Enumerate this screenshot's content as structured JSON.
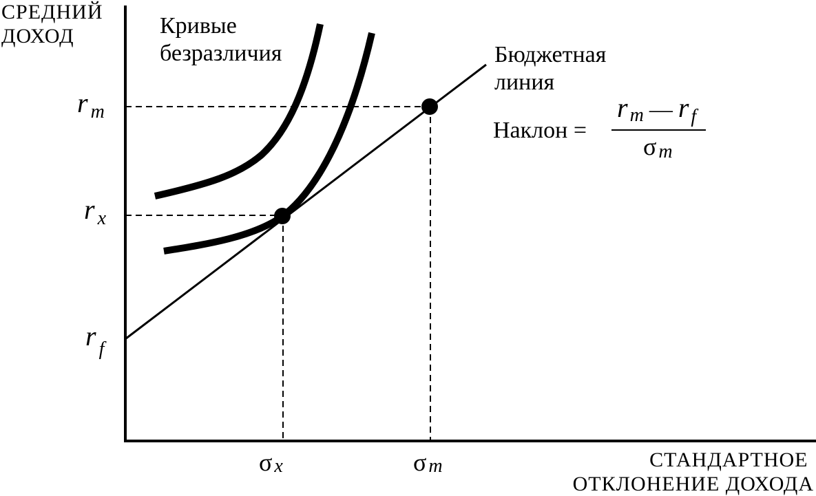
{
  "y_axis_label": [
    "СРЕДНИЙ",
    "ДОХОД"
  ],
  "x_axis_label": [
    "СТАНДАРТНОЕ",
    "ОТКЛОНЕНИЕ ДОХОДА"
  ],
  "indifference_label": [
    "Кривые",
    "безразличия"
  ],
  "budget_label": [
    "Бюджетная",
    "линия"
  ],
  "y_ticks": {
    "rm": {
      "base": "r",
      "sub": "m"
    },
    "rx": {
      "base": "r",
      "sub": "x"
    },
    "rf": {
      "base": "r",
      "sub": "f"
    }
  },
  "x_ticks": {
    "sx": {
      "base": "σ",
      "sub": "x"
    },
    "sm": {
      "base": "σ",
      "sub": "m"
    }
  },
  "slope": {
    "label": "Наклон =",
    "numerator": {
      "a": "r",
      "a_sub": "m",
      "minus": "—",
      "b": "r",
      "b_sub": "f"
    },
    "denominator": {
      "base": "σ",
      "sub": "m"
    }
  }
}
